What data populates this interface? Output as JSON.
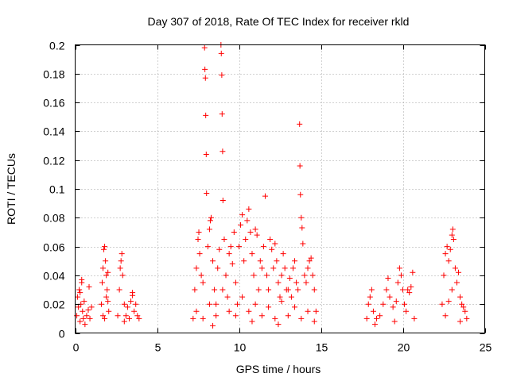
{
  "chart_data": {
    "type": "scatter",
    "title": "Day 307 of 2018, Rate Of TEC Index for receiver rkld",
    "xlabel": "GPS time / hours",
    "ylabel": "ROTI / TECUs",
    "xlim": [
      0,
      25
    ],
    "ylim": [
      0,
      0.2
    ],
    "xticks": [
      0,
      5,
      10,
      15,
      20,
      25
    ],
    "xtick_labels": [
      "0",
      "5",
      "10",
      "15",
      "20",
      "25"
    ],
    "yticks": [
      0,
      0.02,
      0.04,
      0.06,
      0.08,
      0.1,
      0.12,
      0.14,
      0.16,
      0.18,
      0.2
    ],
    "ytick_labels": [
      "0",
      "0.02",
      "0.04",
      "0.06",
      "0.08",
      "0.1",
      "0.12",
      "0.14",
      "0.16",
      "0.18",
      "0.2"
    ],
    "grid": true,
    "marker": "+",
    "marker_color": "#ff0000",
    "series": [
      {
        "name": "ROTI",
        "points": [
          [
            0.1,
            0.012
          ],
          [
            0.15,
            0.025
          ],
          [
            0.2,
            0.018
          ],
          [
            0.25,
            0.03
          ],
          [
            0.3,
            0.008
          ],
          [
            0.35,
            0.02
          ],
          [
            0.4,
            0.035
          ],
          [
            0.45,
            0.015
          ],
          [
            0.5,
            0.01
          ],
          [
            0.55,
            0.022
          ],
          [
            0.6,
            0.006
          ],
          [
            0.7,
            0.012
          ],
          [
            0.8,
            0.016
          ],
          [
            0.9,
            0.01
          ],
          [
            1.0,
            0.018
          ],
          [
            0.3,
            0.028
          ],
          [
            0.4,
            0.037
          ],
          [
            0.85,
            0.032
          ],
          [
            1.6,
            0.02
          ],
          [
            1.65,
            0.035
          ],
          [
            1.7,
            0.045
          ],
          [
            1.75,
            0.058
          ],
          [
            1.8,
            0.06
          ],
          [
            1.85,
            0.05
          ],
          [
            1.9,
            0.04
          ],
          [
            1.95,
            0.03
          ],
          [
            2.0,
            0.022
          ],
          [
            2.05,
            0.015
          ],
          [
            1.7,
            0.012
          ],
          [
            1.8,
            0.01
          ],
          [
            1.9,
            0.025
          ],
          [
            2.0,
            0.042
          ],
          [
            2.6,
            0.012
          ],
          [
            2.7,
            0.03
          ],
          [
            2.75,
            0.045
          ],
          [
            2.8,
            0.05
          ],
          [
            2.85,
            0.055
          ],
          [
            2.9,
            0.04
          ],
          [
            3.0,
            0.02
          ],
          [
            3.1,
            0.012
          ],
          [
            3.2,
            0.018
          ],
          [
            3.3,
            0.01
          ],
          [
            3.4,
            0.022
          ],
          [
            3.5,
            0.026
          ],
          [
            3.6,
            0.015
          ],
          [
            3.7,
            0.02
          ],
          [
            3.8,
            0.012
          ],
          [
            3.9,
            0.01
          ],
          [
            3.5,
            0.028
          ],
          [
            3.0,
            0.008
          ],
          [
            7.2,
            0.01
          ],
          [
            7.3,
            0.03
          ],
          [
            7.4,
            0.045
          ],
          [
            7.5,
            0.065
          ],
          [
            7.55,
            0.07
          ],
          [
            7.6,
            0.055
          ],
          [
            7.7,
            0.04
          ],
          [
            7.8,
            0.035
          ],
          [
            7.9,
            0.198
          ],
          [
            7.92,
            0.183
          ],
          [
            7.95,
            0.177
          ],
          [
            7.97,
            0.151
          ],
          [
            8.0,
            0.124
          ],
          [
            8.02,
            0.097
          ],
          [
            8.1,
            0.06
          ],
          [
            8.2,
            0.072
          ],
          [
            8.25,
            0.078
          ],
          [
            8.3,
            0.08
          ],
          [
            8.4,
            0.05
          ],
          [
            8.5,
            0.03
          ],
          [
            8.6,
            0.02
          ],
          [
            8.7,
            0.045
          ],
          [
            8.8,
            0.058
          ],
          [
            8.9,
            0.2
          ],
          [
            8.92,
            0.194
          ],
          [
            8.95,
            0.179
          ],
          [
            8.97,
            0.152
          ],
          [
            9.0,
            0.126
          ],
          [
            9.02,
            0.092
          ],
          [
            9.1,
            0.065
          ],
          [
            9.2,
            0.04
          ],
          [
            9.3,
            0.025
          ],
          [
            9.4,
            0.055
          ],
          [
            9.5,
            0.06
          ],
          [
            9.6,
            0.048
          ],
          [
            9.7,
            0.07
          ],
          [
            9.8,
            0.035
          ],
          [
            9.9,
            0.02
          ],
          [
            10.0,
            0.06
          ],
          [
            10.1,
            0.075
          ],
          [
            10.2,
            0.082
          ],
          [
            10.3,
            0.05
          ],
          [
            10.4,
            0.065
          ],
          [
            10.5,
            0.078
          ],
          [
            10.6,
            0.086
          ],
          [
            10.7,
            0.07
          ],
          [
            10.8,
            0.055
          ],
          [
            10.9,
            0.04
          ],
          [
            11.0,
            0.072
          ],
          [
            11.1,
            0.068
          ],
          [
            11.2,
            0.03
          ],
          [
            11.3,
            0.05
          ],
          [
            11.4,
            0.045
          ],
          [
            11.5,
            0.06
          ],
          [
            11.6,
            0.095
          ],
          [
            11.7,
            0.04
          ],
          [
            11.8,
            0.03
          ],
          [
            11.9,
            0.065
          ],
          [
            12.0,
            0.058
          ],
          [
            12.1,
            0.045
          ],
          [
            12.2,
            0.062
          ],
          [
            12.3,
            0.05
          ],
          [
            12.4,
            0.035
          ],
          [
            12.5,
            0.025
          ],
          [
            12.6,
            0.04
          ],
          [
            12.7,
            0.055
          ],
          [
            12.8,
            0.045
          ],
          [
            12.9,
            0.03
          ],
          [
            13.0,
            0.03
          ],
          [
            13.1,
            0.038
          ],
          [
            13.2,
            0.025
          ],
          [
            13.3,
            0.045
          ],
          [
            13.4,
            0.05
          ],
          [
            13.5,
            0.035
          ],
          [
            13.6,
            0.03
          ],
          [
            13.7,
            0.145
          ],
          [
            13.72,
            0.116
          ],
          [
            13.75,
            0.096
          ],
          [
            13.8,
            0.08
          ],
          [
            13.85,
            0.073
          ],
          [
            13.9,
            0.062
          ],
          [
            14.0,
            0.04
          ],
          [
            14.1,
            0.035
          ],
          [
            14.2,
            0.045
          ],
          [
            14.3,
            0.05
          ],
          [
            14.4,
            0.052
          ],
          [
            14.5,
            0.04
          ],
          [
            14.6,
            0.03
          ],
          [
            14.7,
            0.015
          ],
          [
            7.4,
            0.015
          ],
          [
            7.8,
            0.01
          ],
          [
            8.2,
            0.02
          ],
          [
            8.6,
            0.012
          ],
          [
            9.0,
            0.03
          ],
          [
            9.4,
            0.015
          ],
          [
            9.8,
            0.012
          ],
          [
            10.2,
            0.025
          ],
          [
            10.6,
            0.015
          ],
          [
            11.0,
            0.02
          ],
          [
            11.4,
            0.012
          ],
          [
            11.8,
            0.018
          ],
          [
            12.2,
            0.01
          ],
          [
            12.6,
            0.022
          ],
          [
            13.0,
            0.012
          ],
          [
            13.4,
            0.018
          ],
          [
            13.8,
            0.01
          ],
          [
            14.2,
            0.015
          ],
          [
            14.6,
            0.008
          ],
          [
            8.4,
            0.005
          ],
          [
            10.8,
            0.008
          ],
          [
            12.4,
            0.006
          ],
          [
            17.8,
            0.01
          ],
          [
            17.9,
            0.02
          ],
          [
            18.0,
            0.025
          ],
          [
            18.1,
            0.03
          ],
          [
            18.2,
            0.015
          ],
          [
            18.4,
            0.01
          ],
          [
            18.6,
            0.012
          ],
          [
            18.8,
            0.02
          ],
          [
            19.0,
            0.03
          ],
          [
            19.1,
            0.038
          ],
          [
            19.2,
            0.025
          ],
          [
            19.4,
            0.018
          ],
          [
            19.6,
            0.022
          ],
          [
            19.7,
            0.035
          ],
          [
            19.8,
            0.045
          ],
          [
            19.9,
            0.04
          ],
          [
            20.0,
            0.03
          ],
          [
            20.1,
            0.02
          ],
          [
            20.2,
            0.015
          ],
          [
            20.3,
            0.03
          ],
          [
            20.4,
            0.028
          ],
          [
            20.5,
            0.032
          ],
          [
            20.6,
            0.042
          ],
          [
            20.7,
            0.01
          ],
          [
            18.3,
            0.006
          ],
          [
            19.5,
            0.008
          ],
          [
            22.4,
            0.02
          ],
          [
            22.5,
            0.04
          ],
          [
            22.6,
            0.055
          ],
          [
            22.7,
            0.06
          ],
          [
            22.8,
            0.05
          ],
          [
            22.9,
            0.058
          ],
          [
            23.0,
            0.068
          ],
          [
            23.05,
            0.072
          ],
          [
            23.1,
            0.065
          ],
          [
            23.2,
            0.045
          ],
          [
            23.3,
            0.035
          ],
          [
            23.4,
            0.042
          ],
          [
            23.5,
            0.025
          ],
          [
            23.6,
            0.02
          ],
          [
            23.7,
            0.018
          ],
          [
            23.8,
            0.015
          ],
          [
            23.9,
            0.01
          ],
          [
            22.6,
            0.012
          ],
          [
            23.0,
            0.03
          ],
          [
            23.5,
            0.008
          ],
          [
            22.8,
            0.022
          ]
        ]
      }
    ]
  }
}
